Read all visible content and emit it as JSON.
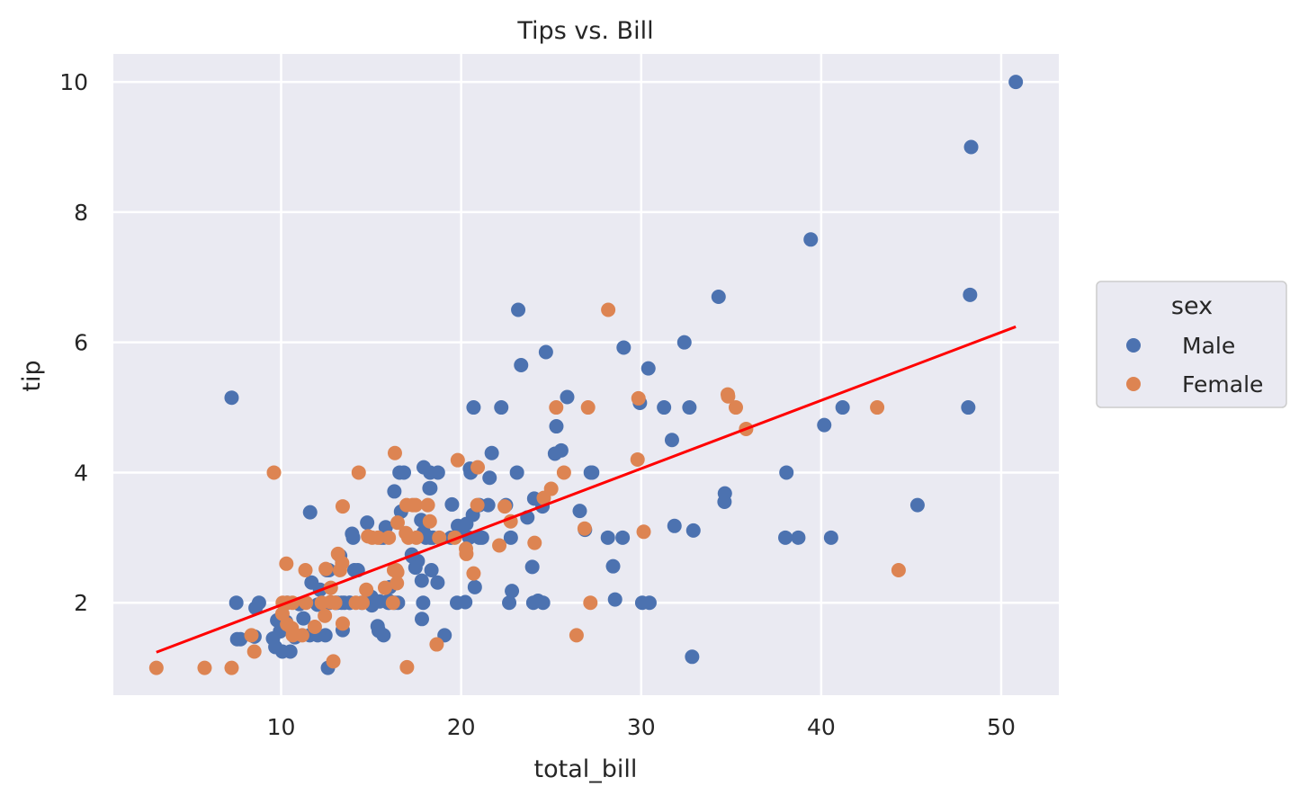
{
  "chart_data": {
    "type": "scatter",
    "title": "Tips vs. Bill",
    "xlabel": "total_bill",
    "ylabel": "tip",
    "xlim": [
      0.68,
      53.2
    ],
    "ylim": [
      0.58,
      10.43
    ],
    "xticks": [
      10,
      20,
      30,
      40,
      50
    ],
    "yticks": [
      2,
      4,
      6,
      8,
      10
    ],
    "grid": true,
    "legend": {
      "title": "sex",
      "placement": "right-outside"
    },
    "colors": {
      "Male": "#4c72b0",
      "Female": "#dd8452",
      "fit_line": "#ff0000",
      "background": "#eaeaf2"
    },
    "fit_line": {
      "x": [
        3.07,
        50.81
      ],
      "y": [
        1.24,
        6.24
      ]
    },
    "series": [
      {
        "name": "Male",
        "points": [
          [
            10.34,
            1.66
          ],
          [
            21.01,
            3.5
          ],
          [
            23.68,
            3.31
          ],
          [
            25.29,
            4.71
          ],
          [
            8.77,
            2.0
          ],
          [
            26.88,
            3.12
          ],
          [
            15.04,
            1.96
          ],
          [
            14.78,
            3.23
          ],
          [
            10.27,
            1.71
          ],
          [
            15.42,
            1.57
          ],
          [
            18.43,
            3.0
          ],
          [
            21.58,
            3.92
          ],
          [
            16.29,
            3.71
          ],
          [
            20.65,
            3.35
          ],
          [
            17.92,
            4.08
          ],
          [
            39.42,
            7.58
          ],
          [
            19.82,
            3.18
          ],
          [
            17.81,
            2.34
          ],
          [
            13.37,
            2.0
          ],
          [
            12.69,
            2.0
          ],
          [
            21.7,
            4.3
          ],
          [
            9.55,
            1.45
          ],
          [
            18.35,
            2.5
          ],
          [
            17.78,
            3.27
          ],
          [
            24.06,
            3.6
          ],
          [
            16.31,
            2.0
          ],
          [
            18.69,
            2.31
          ],
          [
            31.27,
            5.0
          ],
          [
            16.04,
            2.24
          ],
          [
            17.46,
            2.54
          ],
          [
            13.94,
            3.06
          ],
          [
            9.68,
            1.32
          ],
          [
            30.4,
            5.6
          ],
          [
            18.29,
            3.0
          ],
          [
            22.23,
            5.0
          ],
          [
            32.4,
            6.0
          ],
          [
            28.55,
            2.05
          ],
          [
            18.04,
            3.0
          ],
          [
            12.54,
            2.5
          ],
          [
            9.94,
            1.56
          ],
          [
            25.56,
            4.34
          ],
          [
            19.49,
            3.51
          ],
          [
            38.01,
            3.0
          ],
          [
            11.24,
            1.76
          ],
          [
            48.27,
            6.73
          ],
          [
            20.29,
            3.21
          ],
          [
            13.81,
            2.0
          ],
          [
            11.02,
            1.98
          ],
          [
            18.29,
            3.76
          ],
          [
            17.59,
            2.64
          ],
          [
            20.08,
            3.15
          ],
          [
            20.23,
            2.01
          ],
          [
            15.01,
            2.09
          ],
          [
            12.02,
            1.97
          ],
          [
            10.51,
            1.25
          ],
          [
            17.92,
            3.08
          ],
          [
            27.2,
            4.0
          ],
          [
            22.76,
            3.0
          ],
          [
            17.29,
            2.71
          ],
          [
            19.44,
            3.0
          ],
          [
            16.66,
            3.4
          ],
          [
            32.68,
            5.0
          ],
          [
            15.98,
            2.03
          ],
          [
            13.03,
            2.0
          ],
          [
            18.28,
            4.0
          ],
          [
            24.71,
            5.85
          ],
          [
            21.16,
            3.0
          ],
          [
            28.97,
            3.0
          ],
          [
            22.49,
            3.5
          ],
          [
            40.17,
            4.73
          ],
          [
            27.28,
            4.0
          ],
          [
            12.03,
            1.5
          ],
          [
            21.01,
            3.0
          ],
          [
            12.46,
            1.5
          ],
          [
            15.36,
            1.64
          ],
          [
            20.49,
            4.06
          ],
          [
            25.21,
            4.29
          ],
          [
            18.24,
            3.76
          ],
          [
            14.0,
            3.0
          ],
          [
            38.07,
            4.0
          ],
          [
            23.95,
            2.55
          ],
          [
            29.93,
            5.07
          ],
          [
            11.69,
            2.31
          ],
          [
            14.26,
            2.5
          ],
          [
            15.95,
            2.0
          ],
          [
            8.52,
            1.48
          ],
          [
            22.82,
            2.18
          ],
          [
            19.08,
            1.5
          ],
          [
            16.0,
            2.0
          ],
          [
            34.3,
            6.7
          ],
          [
            41.19,
            5.0
          ],
          [
            9.78,
            1.73
          ],
          [
            7.51,
            2.0
          ],
          [
            14.07,
            2.5
          ],
          [
            13.13,
            2.0
          ],
          [
            17.26,
            2.74
          ],
          [
            24.55,
            2.0
          ],
          [
            19.77,
            2.0
          ],
          [
            48.17,
            5.0
          ],
          [
            16.49,
            2.0
          ],
          [
            21.5,
            3.5
          ],
          [
            12.66,
            2.5
          ],
          [
            13.81,
            2.0
          ],
          [
            24.52,
            3.48
          ],
          [
            20.76,
            2.24
          ],
          [
            31.71,
            4.5
          ],
          [
            50.81,
            10.0
          ],
          [
            15.81,
            3.16
          ],
          [
            7.25,
            5.15
          ],
          [
            31.85,
            3.18
          ],
          [
            16.82,
            4.0
          ],
          [
            32.9,
            3.11
          ],
          [
            17.89,
            2.0
          ],
          [
            14.48,
            2.0
          ],
          [
            34.63,
            3.55
          ],
          [
            34.65,
            3.68
          ],
          [
            23.33,
            5.65
          ],
          [
            45.35,
            3.5
          ],
          [
            23.17,
            6.5
          ],
          [
            40.55,
            3.0
          ],
          [
            20.69,
            5.0
          ],
          [
            30.46,
            2.0
          ],
          [
            23.1,
            4.0
          ],
          [
            15.69,
            1.5
          ],
          [
            28.44,
            2.56
          ],
          [
            15.48,
            2.02
          ],
          [
            16.58,
            4.0
          ],
          [
            7.56,
            1.44
          ],
          [
            10.34,
            2.0
          ],
          [
            13.51,
            2.0
          ],
          [
            18.71,
            4.0
          ],
          [
            20.53,
            4.0
          ],
          [
            26.59,
            3.41
          ],
          [
            38.73,
            3.0
          ],
          [
            24.27,
            2.03
          ],
          [
            30.06,
            2.0
          ],
          [
            25.89,
            5.16
          ],
          [
            48.33,
            9.0
          ],
          [
            28.15,
            3.0
          ],
          [
            11.59,
            1.5
          ],
          [
            7.74,
            1.44
          ],
          [
            12.16,
            2.2
          ],
          [
            8.58,
            1.92
          ],
          [
            13.42,
            1.58
          ],
          [
            20.45,
            3.0
          ],
          [
            13.28,
            2.72
          ],
          [
            24.01,
            2.0
          ],
          [
            15.69,
            3.0
          ],
          [
            11.61,
            3.39
          ],
          [
            10.77,
            1.47
          ],
          [
            15.53,
            3.0
          ],
          [
            10.07,
            1.25
          ],
          [
            12.6,
            1.0
          ],
          [
            32.83,
            1.17
          ],
          [
            29.03,
            5.92
          ],
          [
            22.67,
            2.0
          ],
          [
            17.82,
            1.75
          ]
        ]
      },
      {
        "name": "Female",
        "points": [
          [
            16.99,
            1.01
          ],
          [
            24.59,
            3.61
          ],
          [
            35.26,
            5.0
          ],
          [
            14.83,
            3.02
          ],
          [
            10.33,
            1.67
          ],
          [
            16.97,
            3.5
          ],
          [
            20.29,
            2.75
          ],
          [
            15.77,
            2.23
          ],
          [
            19.65,
            3.0
          ],
          [
            15.06,
            3.0
          ],
          [
            20.69,
            2.45
          ],
          [
            16.93,
            3.07
          ],
          [
            10.29,
            2.6
          ],
          [
            34.81,
            5.2
          ],
          [
            26.41,
            1.5
          ],
          [
            16.45,
            2.47
          ],
          [
            3.07,
            1.0
          ],
          [
            17.07,
            3.0
          ],
          [
            26.86,
            3.14
          ],
          [
            25.28,
            5.0
          ],
          [
            14.73,
            2.2
          ],
          [
            10.07,
            1.83
          ],
          [
            34.83,
            5.17
          ],
          [
            5.75,
            1.0
          ],
          [
            16.32,
            4.3
          ],
          [
            22.75,
            3.25
          ],
          [
            11.35,
            2.5
          ],
          [
            15.38,
            3.0
          ],
          [
            44.3,
            2.5
          ],
          [
            22.42,
            3.48
          ],
          [
            20.92,
            4.08
          ],
          [
            14.31,
            4.0
          ],
          [
            7.25,
            1.0
          ],
          [
            25.71,
            4.0
          ],
          [
            17.31,
            3.5
          ],
          [
            10.65,
            1.5
          ],
          [
            12.43,
            1.8
          ],
          [
            24.08,
            2.92
          ],
          [
            13.42,
            1.68
          ],
          [
            12.48,
            2.52
          ],
          [
            29.8,
            4.2
          ],
          [
            14.52,
            2.0
          ],
          [
            11.38,
            2.0
          ],
          [
            20.27,
            2.83
          ],
          [
            11.17,
            1.5
          ],
          [
            12.26,
            2.0
          ],
          [
            18.26,
            3.25
          ],
          [
            8.51,
            1.25
          ],
          [
            10.33,
            2.0
          ],
          [
            14.15,
            2.0
          ],
          [
            13.16,
            2.75
          ],
          [
            17.47,
            3.5
          ],
          [
            27.05,
            5.0
          ],
          [
            16.43,
            2.3
          ],
          [
            8.35,
            1.5
          ],
          [
            18.64,
            1.36
          ],
          [
            11.87,
            1.63
          ],
          [
            29.85,
            5.14
          ],
          [
            25.0,
            3.75
          ],
          [
            13.39,
            2.61
          ],
          [
            16.21,
            2.0
          ],
          [
            17.51,
            3.0
          ],
          [
            10.59,
            1.61
          ],
          [
            10.63,
            2.0
          ],
          [
            9.6,
            4.0
          ],
          [
            20.9,
            3.5
          ],
          [
            18.15,
            3.5
          ],
          [
            19.81,
            4.19
          ],
          [
            43.11,
            5.0
          ],
          [
            13.0,
            2.0
          ],
          [
            12.74,
            2.01
          ],
          [
            13.0,
            2.0
          ],
          [
            16.4,
            2.5
          ],
          [
            16.47,
            3.23
          ],
          [
            12.76,
            2.23
          ],
          [
            13.27,
            2.5
          ],
          [
            28.17,
            6.5
          ],
          [
            12.9,
            1.1
          ],
          [
            30.14,
            3.09
          ],
          [
            13.42,
            3.48
          ],
          [
            15.98,
            3.0
          ],
          [
            16.27,
            2.5
          ],
          [
            10.09,
            2.0
          ],
          [
            22.12,
            2.88
          ],
          [
            35.83,
            4.67
          ],
          [
            27.18,
            2.0
          ],
          [
            18.78,
            3.0
          ]
        ]
      }
    ]
  }
}
